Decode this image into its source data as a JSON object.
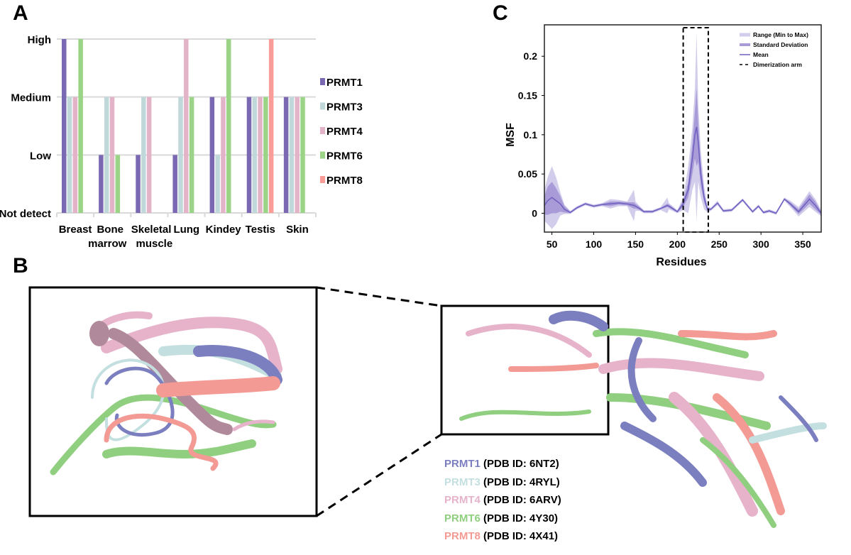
{
  "panels": {
    "a": "A",
    "b": "B",
    "c": "C"
  },
  "chart_data": [
    {
      "type": "bar",
      "title": "",
      "xlabel": "",
      "ylabel": "",
      "categories": [
        "Breast",
        "Bone marrow",
        "Skeletal muscle",
        "Lung",
        "Kindey",
        "Testis",
        "Skin"
      ],
      "category_lines": [
        [
          "Breast"
        ],
        [
          "Bone",
          "marrow"
        ],
        [
          "Skeletal",
          "muscle"
        ],
        [
          "Lung"
        ],
        [
          "Kindey"
        ],
        [
          "Testis"
        ],
        [
          "Skin"
        ]
      ],
      "y_levels": [
        "Not detect",
        "Low",
        "Medium",
        "High"
      ],
      "ylim": [
        0,
        3
      ],
      "grid": true,
      "legend_position": "right",
      "series": [
        {
          "name": "PRMT1",
          "color": "#7a68b3",
          "values": [
            3,
            1,
            1,
            1,
            2,
            2,
            2
          ]
        },
        {
          "name": "PRMT3",
          "color": "#c0d8da",
          "values": [
            2,
            2,
            2,
            2,
            1,
            2,
            2
          ]
        },
        {
          "name": "PRMT4",
          "color": "#e3b3c8",
          "values": [
            2,
            2,
            2,
            3,
            2,
            2,
            2
          ]
        },
        {
          "name": "PRMT6",
          "color": "#9bd486",
          "values": [
            3,
            1,
            null,
            2,
            3,
            2,
            2
          ]
        },
        {
          "name": "PRMT8",
          "color": "#fa9d98",
          "values": [
            null,
            null,
            null,
            null,
            null,
            3,
            null
          ]
        }
      ]
    },
    {
      "type": "line",
      "title": "",
      "xlabel": "Residues",
      "ylabel": "MSF",
      "xlim": [
        41,
        372
      ],
      "ylim": [
        -0.024,
        0.24
      ],
      "xticks": [
        50,
        100,
        150,
        200,
        250,
        300,
        350
      ],
      "yticks": [
        0,
        0.05,
        0.1,
        0.15,
        0.2
      ],
      "ytick_labels": [
        "0",
        "0.05",
        "0.1",
        "0.15",
        "0.2"
      ],
      "legend_position": "top-right",
      "legend": [
        "Range (Min to Max)",
        "Standard Deviation",
        "Mean",
        "Dimerization arm"
      ],
      "colors": {
        "range": "#d3cdec",
        "sd": "#a89bd8",
        "mean": "#6f5fc0"
      },
      "dimerization_arm": [
        207,
        237
      ],
      "x": [
        41,
        45,
        50,
        55,
        60,
        65,
        72,
        80,
        90,
        100,
        110,
        120,
        130,
        140,
        148,
        150,
        155,
        160,
        170,
        180,
        188,
        190,
        200,
        207,
        213,
        218,
        221,
        223,
        225,
        228,
        232,
        236,
        240,
        248,
        255,
        265,
        278,
        290,
        297,
        303,
        310,
        318,
        328,
        335,
        345,
        358,
        365,
        372
      ],
      "mean": [
        0.01,
        0.016,
        0.02,
        0.016,
        0.012,
        0.005,
        0.001,
        0.007,
        0.012,
        0.009,
        0.011,
        0.012,
        0.013,
        0.012,
        0.01,
        0.009,
        0.006,
        0.002,
        0.002,
        0.006,
        0.01,
        0.009,
        0.002,
        0.012,
        0.03,
        0.07,
        0.1,
        0.11,
        0.09,
        0.05,
        0.02,
        0.005,
        0.005,
        0.013,
        0.003,
        0.004,
        0.017,
        0.002,
        0.009,
        0.001,
        0.003,
        0.0,
        0.018,
        0.012,
        0.002,
        0.018,
        0.01,
        0.0
      ],
      "sd": [
        0.012,
        0.018,
        0.02,
        0.016,
        0.01,
        0.004,
        0.001,
        0.001,
        0.001,
        0.001,
        0.001,
        0.003,
        0.002,
        0.002,
        0.004,
        0.003,
        0.002,
        0.001,
        0.001,
        0.001,
        0.002,
        0.002,
        0.001,
        0.004,
        0.01,
        0.02,
        0.03,
        0.05,
        0.025,
        0.015,
        0.006,
        0.002,
        0.001,
        0.001,
        0.001,
        0.001,
        0.001,
        0.001,
        0.001,
        0.001,
        0.001,
        0.001,
        0.001,
        0.002,
        0.003,
        0.006,
        0.005,
        0.002
      ],
      "range": [
        0.02,
        0.03,
        0.04,
        0.03,
        0.015,
        0.006,
        0.002,
        0.002,
        0.002,
        0.002,
        0.002,
        0.006,
        0.004,
        0.003,
        0.02,
        0.006,
        0.003,
        0.002,
        0.002,
        0.002,
        0.01,
        0.004,
        0.002,
        0.008,
        0.03,
        0.04,
        0.06,
        0.12,
        0.05,
        0.03,
        0.015,
        0.004,
        0.002,
        0.003,
        0.002,
        0.002,
        0.002,
        0.002,
        0.002,
        0.002,
        0.002,
        0.002,
        0.002,
        0.004,
        0.006,
        0.01,
        0.008,
        0.004
      ]
    }
  ],
  "structure_legend": [
    {
      "name": "PRMT1",
      "pdb": "(PDB ID: 6NT2)",
      "color": "#7b7fc0"
    },
    {
      "name": "PRMT3",
      "pdb": "(PDB ID: 4RYL)",
      "color": "#c4dfe0"
    },
    {
      "name": "PRMT4",
      "pdb": "(PDB ID: 6ARV)",
      "color": "#e6b3cb"
    },
    {
      "name": "PRMT6",
      "pdb": "(PDB ID: 4Y30)",
      "color": "#8fcf7f"
    },
    {
      "name": "PRMT8",
      "pdb": "(PDB ID: 4X41)",
      "color": "#f49a94"
    }
  ]
}
